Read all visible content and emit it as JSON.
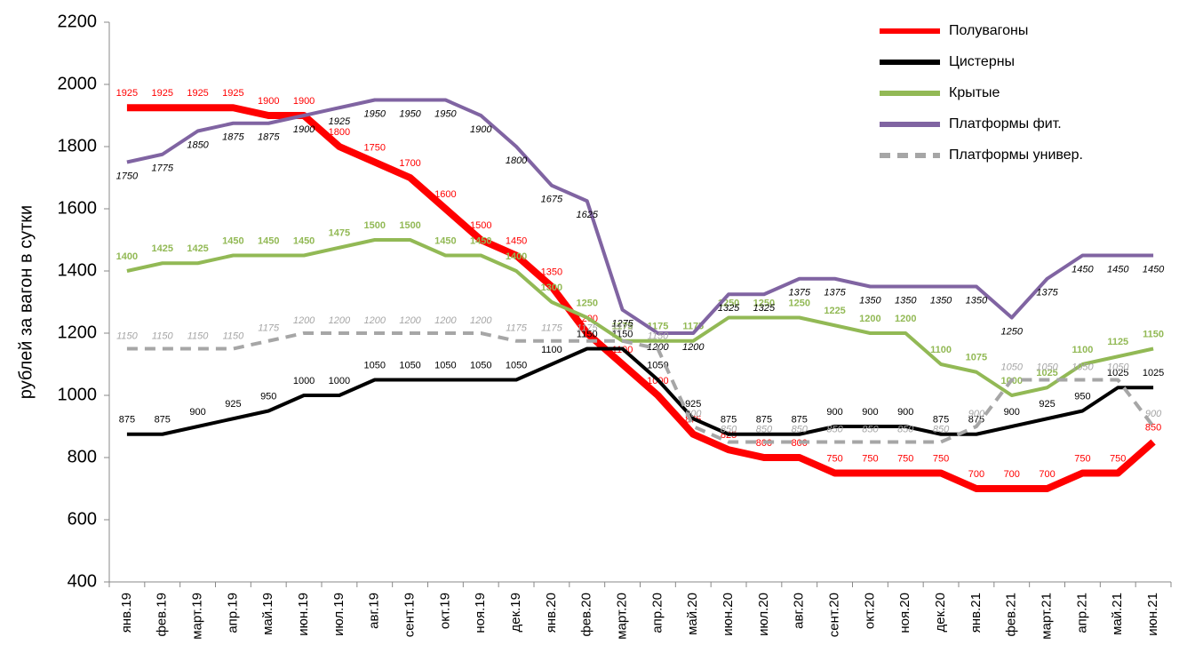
{
  "chart_data": {
    "type": "line",
    "y_label": "рублей за вагон в сутки",
    "categories": [
      "янв.19",
      "фев.19",
      "март.19",
      "апр.19",
      "май.19",
      "июн.19",
      "июл.19",
      "авг.19",
      "сент.19",
      "окт.19",
      "ноя.19",
      "дек.19",
      "янв.20",
      "фев.20",
      "март.20",
      "апр.20",
      "май.20",
      "июн.20",
      "июл.20",
      "авг.20",
      "сент.20",
      "окт.20",
      "ноя.20",
      "дек.20",
      "янв.21",
      "фев.21",
      "март.21",
      "апр.21",
      "май.21",
      "июн.21"
    ],
    "ylim": [
      400,
      2200
    ],
    "yticks": [
      400,
      600,
      800,
      1000,
      1200,
      1400,
      1600,
      1800,
      2000,
      2200
    ],
    "grid": false,
    "legend": "top-right",
    "series": [
      {
        "name": "Полувагоны",
        "color": "#ff0000",
        "values": [
          1925,
          1925,
          1925,
          1925,
          1900,
          1900,
          1800,
          1750,
          1700,
          1600,
          1500,
          1450,
          1350,
          1200,
          1100,
          1000,
          875,
          825,
          800,
          800,
          750,
          750,
          750,
          750,
          700,
          700,
          700,
          750,
          750,
          850
        ]
      },
      {
        "name": "Цистерны",
        "color": "#000000",
        "values": [
          875,
          875,
          900,
          925,
          950,
          1000,
          1000,
          1050,
          1050,
          1050,
          1050,
          1050,
          1100,
          1150,
          1150,
          1050,
          925,
          875,
          875,
          875,
          900,
          900,
          900,
          875,
          875,
          900,
          925,
          950,
          1025,
          1025
        ]
      },
      {
        "name": "Крытые",
        "color": "#92b955",
        "values": [
          1400,
          1425,
          1425,
          1450,
          1450,
          1450,
          1475,
          1500,
          1500,
          1450,
          1450,
          1400,
          1300,
          1250,
          1175,
          1175,
          1175,
          1250,
          1250,
          1250,
          1225,
          1200,
          1200,
          1100,
          1075,
          1000,
          1025,
          1100,
          1125,
          1150
        ]
      },
      {
        "name": "Платформы фит.",
        "color": "#8064a2",
        "values": [
          1750,
          1775,
          1850,
          1875,
          1875,
          1900,
          1925,
          1950,
          1950,
          1950,
          1900,
          1800,
          1675,
          1625,
          1275,
          1200,
          1200,
          1325,
          1325,
          1375,
          1375,
          1350,
          1350,
          1350,
          1350,
          1250,
          1375,
          1450,
          1450,
          1450
        ]
      },
      {
        "name": "Платформы универ.",
        "color": "#a6a6a6",
        "dashed": true,
        "values": [
          1150,
          1150,
          1150,
          1150,
          1175,
          1200,
          1200,
          1200,
          1200,
          1200,
          1200,
          1175,
          1175,
          1175,
          1175,
          1150,
          900,
          850,
          850,
          850,
          850,
          850,
          850,
          850,
          900,
          1050,
          1050,
          1050,
          1050,
          900
        ]
      }
    ]
  }
}
